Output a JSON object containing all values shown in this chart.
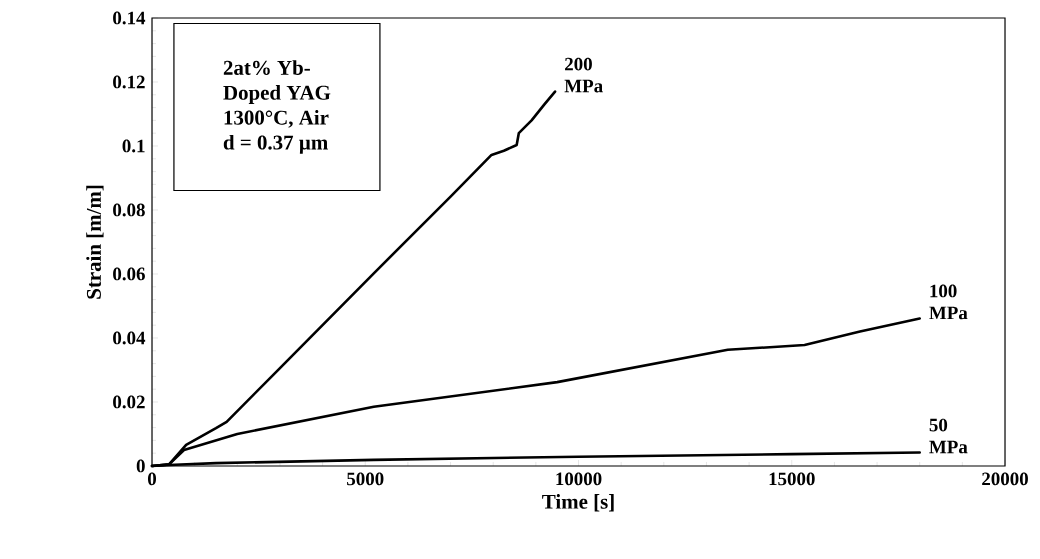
{
  "chart_data": {
    "type": "line",
    "xlabel": "Time [s]",
    "ylabel": "Strain [m/m]",
    "annotations": [
      "2at% Yb-",
      "Doped YAG",
      "1300°C, Air",
      "d = 0.37 µm"
    ],
    "xlim": [
      0,
      20000
    ],
    "xticks": [
      0,
      5000,
      10000,
      15000,
      20000
    ],
    "ylim": [
      0,
      0.14
    ],
    "yticks": [
      0,
      0.02,
      0.04,
      0.06,
      0.08,
      0.1,
      0.12,
      0.14
    ],
    "grid": false,
    "marker": "none",
    "line_style": "solid",
    "series": [
      {
        "name": "200 MPa",
        "color": "#000000",
        "x": [
          0,
          400,
          800,
          1500,
          1750,
          3000,
          5200,
          7000,
          7960,
          8250,
          8550,
          8600,
          8900,
          9200,
          9450
        ],
        "values": [
          0,
          0.0005,
          0.0066,
          0.0118,
          0.0138,
          0.0306,
          0.0602,
          0.0842,
          0.0972,
          0.0985,
          0.1003,
          0.104,
          0.108,
          0.113,
          0.117
        ]
      },
      {
        "name": "100 MPa",
        "color": "#000000",
        "x": [
          0,
          400,
          750,
          2000,
          5200,
          9500,
          13500,
          15300,
          16600,
          18000
        ],
        "values": [
          0,
          0.0005,
          0.005,
          0.01,
          0.0185,
          0.0262,
          0.0363,
          0.0378,
          0.042,
          0.0461
        ]
      },
      {
        "name": "50 MPa",
        "color": "#000000",
        "x": [
          0,
          400,
          1500,
          5200,
          10000,
          15000,
          18000
        ],
        "values": [
          0,
          0.0003,
          0.0009,
          0.0019,
          0.0029,
          0.0037,
          0.0042
        ]
      }
    ]
  }
}
